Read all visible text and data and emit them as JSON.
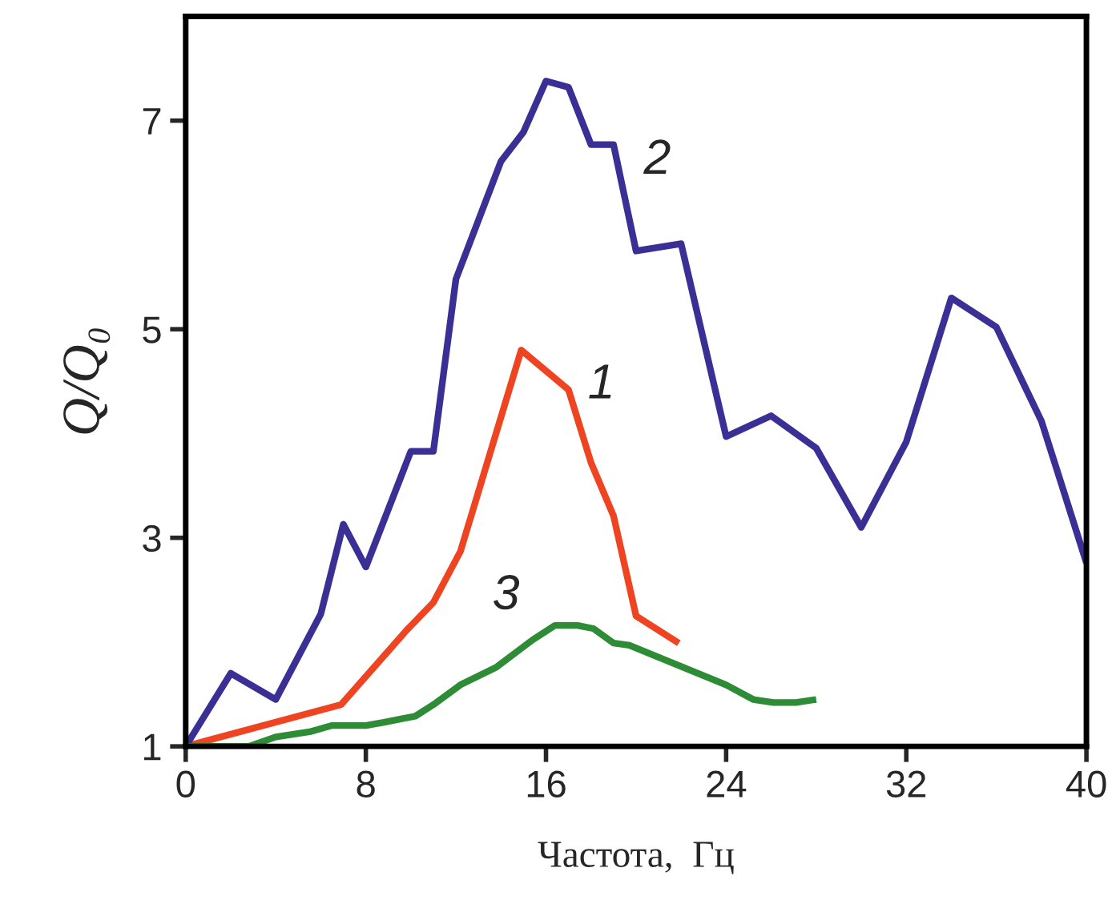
{
  "chart_data": {
    "type": "line",
    "xlabel": "Частота,  Гц",
    "ylabel": "Q/Q₀",
    "xlim": [
      0,
      40
    ],
    "xticks": [
      0,
      8,
      16,
      24,
      32,
      40
    ],
    "ylim": [
      1,
      8
    ],
    "yticks": [
      1,
      3,
      5,
      7
    ],
    "grid": false,
    "legend": false,
    "marker": "none",
    "line_style": "solid",
    "series": [
      {
        "name": "1",
        "color": "#ee4422",
        "x": [
          0,
          6.9,
          9.75,
          11,
          12.2,
          14.9,
          17,
          18,
          19,
          20,
          21.9
        ],
        "values": [
          1,
          1.4,
          2.1,
          2.38,
          2.87,
          4.8,
          4.42,
          3.72,
          3.21,
          2.25,
          1.99
        ]
      },
      {
        "name": "2",
        "color": "#3a2f94",
        "x": [
          0,
          2,
          4,
          6,
          7,
          8,
          10,
          11,
          12,
          14,
          15,
          16,
          17,
          18,
          19,
          20,
          22,
          24,
          26,
          28,
          30,
          32,
          34,
          36,
          38,
          40
        ],
        "values": [
          1,
          1.7,
          1.45,
          2.27,
          3.13,
          2.72,
          3.83,
          3.83,
          5.48,
          6.61,
          6.89,
          7.38,
          7.32,
          6.77,
          6.77,
          5.75,
          5.82,
          3.97,
          4.17,
          3.86,
          3.1,
          3.92,
          5.3,
          5.02,
          4.12,
          2.76
        ]
      },
      {
        "name": "3",
        "color": "#2e8b36",
        "x": [
          0,
          2,
          2.8,
          4,
          5.5,
          6.5,
          8,
          8.8,
          10.2,
          11,
          12.2,
          13.8,
          15.4,
          16.4,
          17.4,
          18.1,
          19,
          19.7,
          24,
          25.2,
          26.1,
          27.1,
          28
        ],
        "values": [
          1,
          1,
          1,
          1.09,
          1.14,
          1.2,
          1.2,
          1.23,
          1.29,
          1.4,
          1.59,
          1.76,
          2.02,
          2.16,
          2.16,
          2.13,
          1.99,
          1.97,
          1.59,
          1.45,
          1.42,
          1.42,
          1.45
        ]
      }
    ]
  }
}
